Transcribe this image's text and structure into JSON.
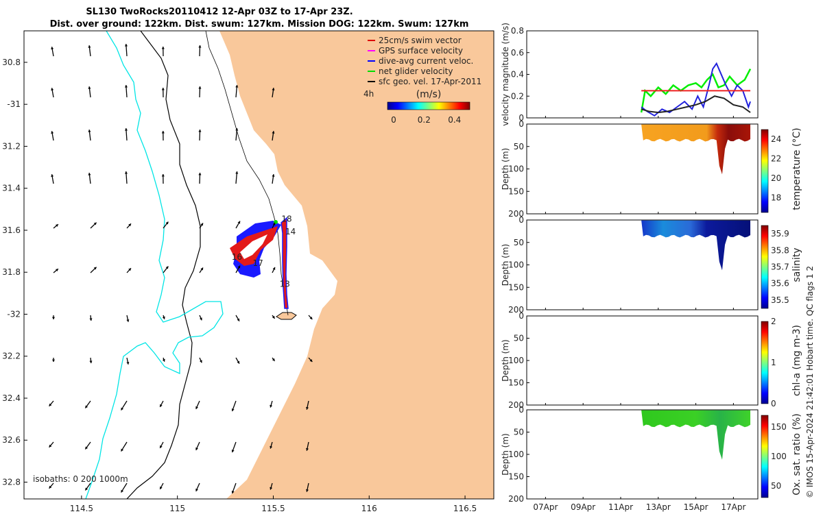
{
  "header": {
    "title_line1": "SL130 TwoRocks20110412 12-Apr 03Z to 17-Apr 23Z.",
    "title_line2": "Dist. over ground: 122km. Dist. swum: 127km. Mission DOG: 122km. Swum: 127km"
  },
  "map": {
    "lat_ticks": [
      "30.8",
      "-31",
      "31.2",
      "31.4",
      "31.6",
      "31.8",
      "-32",
      "32.2",
      "32.4",
      "32.6",
      "32.8"
    ],
    "lon_ticks": [
      "114.5",
      "115",
      "115.5",
      "116",
      "116.5"
    ],
    "legend": [
      {
        "label": "25cm/s swim vector",
        "color": "#dd0000"
      },
      {
        "label": "GPS surface velocity",
        "color": "#ff00ff"
      },
      {
        "label": "dive-avg current veloc.",
        "color": "#0000ff"
      },
      {
        "label": "net glider velocity",
        "color": "#00dd00"
      },
      {
        "label": "sfc geo. vel. 17-Apr-2011",
        "color": "#000000"
      }
    ],
    "scale_label": "4h",
    "colorbar_title": "(m/s)",
    "colorbar_ticks": [
      "0",
      "0.2",
      "0.4"
    ],
    "day_labels": [
      {
        "text": "18",
        "lon": 115.57,
        "lat": 31.56
      },
      {
        "text": "14",
        "lon": 115.59,
        "lat": 31.62
      },
      {
        "text": "16",
        "lon": 115.31,
        "lat": 31.74
      },
      {
        "text": "17",
        "lon": 115.42,
        "lat": 31.77
      },
      {
        "text": "13",
        "lon": 115.56,
        "lat": 31.87
      }
    ],
    "isobaths_label": "isobaths: 0   200  1000m",
    "colors": {
      "land": "#f9c89b",
      "isobath_200": "#000000",
      "isobath_1000": "#00e5e5"
    }
  },
  "panels": {
    "velocity": {
      "ylabel": "velocity magnitude (m/s)",
      "yticks": [
        "0",
        "0.2",
        "0.4",
        "0.6",
        "0.8"
      ]
    },
    "temperature": {
      "ylabel": "Depth (m)",
      "cblabel": "temperature (°C)",
      "cbticks": [
        "18",
        "20",
        "22",
        "24"
      ],
      "yticks": [
        "0",
        "50",
        "100",
        "150",
        "200"
      ]
    },
    "salinity": {
      "ylabel": "Depth (m)",
      "cblabel": "salinity",
      "cbticks": [
        "35.5",
        "35.6",
        "35.7",
        "35.8",
        "35.9"
      ],
      "yticks": [
        "0",
        "50",
        "100",
        "150",
        "200"
      ]
    },
    "chla": {
      "ylabel": "Depth (m)",
      "cblabel": "chl-a (mg m-3)",
      "cbticks": [
        "0",
        "1",
        "2"
      ],
      "yticks": [
        "0",
        "50",
        "100",
        "150",
        "200"
      ]
    },
    "oxygen": {
      "ylabel": "Depth (m)",
      "cblabel": "Ox. sat. ratio (%)",
      "cbticks": [
        "50",
        "100",
        "150"
      ],
      "yticks": [
        "0",
        "50",
        "100",
        "150",
        "200"
      ]
    },
    "date_ticks": [
      "07Apr",
      "09Apr",
      "11Apr",
      "13Apr",
      "15Apr",
      "17Apr"
    ]
  },
  "footer": {
    "side_note": "© IMOS 15-Apr-2024 21:42:01 Hobart time. QC flags 1  2"
  },
  "chart_data": [
    {
      "type": "line",
      "title": "",
      "xlabel": "",
      "ylabel": "velocity magnitude (m/s)",
      "ylim": [
        0,
        0.8
      ],
      "series": [
        {
          "name": "net glider velocity",
          "color": "#00ee00",
          "x": [
            12.1,
            12.3,
            12.6,
            13.0,
            13.4,
            13.8,
            14.2,
            14.6,
            15.0,
            15.3,
            15.6,
            15.9,
            16.2,
            16.5,
            16.8,
            17.2,
            17.6,
            17.9
          ],
          "y": [
            0.05,
            0.25,
            0.2,
            0.28,
            0.22,
            0.3,
            0.25,
            0.3,
            0.32,
            0.28,
            0.35,
            0.4,
            0.28,
            0.3,
            0.38,
            0.3,
            0.35,
            0.45
          ]
        },
        {
          "name": "dive-avg current veloc.",
          "color": "#2222dd",
          "x": [
            12.1,
            12.4,
            12.8,
            13.2,
            13.6,
            14.0,
            14.4,
            14.8,
            15.1,
            15.4,
            15.7,
            15.9,
            16.1,
            16.3,
            16.6,
            16.9,
            17.2,
            17.5,
            17.8,
            17.9
          ],
          "y": [
            0.1,
            0.06,
            0.02,
            0.08,
            0.05,
            0.1,
            0.15,
            0.08,
            0.2,
            0.1,
            0.3,
            0.45,
            0.5,
            0.42,
            0.3,
            0.2,
            0.3,
            0.25,
            0.1,
            0.15
          ]
        },
        {
          "name": "sfc geo. vel. 17-Apr-2011",
          "color": "#222222",
          "x": [
            12.1,
            12.5,
            13.0,
            13.5,
            14.0,
            14.5,
            15.0,
            15.5,
            16.0,
            16.5,
            17.0,
            17.5,
            17.9
          ],
          "y": [
            0.08,
            0.06,
            0.05,
            0.06,
            0.08,
            0.1,
            0.12,
            0.15,
            0.2,
            0.18,
            0.12,
            0.1,
            0.05
          ]
        },
        {
          "name": "25cm/s swim vector",
          "color": "#ee2222",
          "x": [
            12.1,
            17.9
          ],
          "y": [
            0.25,
            0.25
          ]
        }
      ]
    },
    {
      "type": "heatmap",
      "title": "",
      "xlabel": "",
      "ylabel": "Depth (m)",
      "ylim": [
        0,
        200
      ],
      "cblabel": "temperature (°C)",
      "zlim": [
        16.5,
        25
      ],
      "x_range": [
        12.1,
        17.9
      ]
    },
    {
      "type": "heatmap",
      "title": "",
      "xlabel": "",
      "ylabel": "Depth (m)",
      "ylim": [
        0,
        200
      ],
      "cblabel": "salinity",
      "zlim": [
        35.45,
        35.95
      ],
      "x_range": [
        12.1,
        17.9
      ]
    },
    {
      "type": "heatmap",
      "title": "",
      "xlabel": "",
      "ylabel": "Depth (m)",
      "ylim": [
        0,
        200
      ],
      "cblabel": "chl-a (mg m-3)",
      "zlim": [
        0,
        2
      ],
      "x_range": []
    },
    {
      "type": "heatmap",
      "title": "",
      "xlabel": "",
      "ylabel": "Depth (m)",
      "ylim": [
        0,
        200
      ],
      "cblabel": "Ox. sat. ratio (%)",
      "zlim": [
        30,
        170
      ],
      "x_range": [
        12.1,
        17.9
      ]
    }
  ]
}
